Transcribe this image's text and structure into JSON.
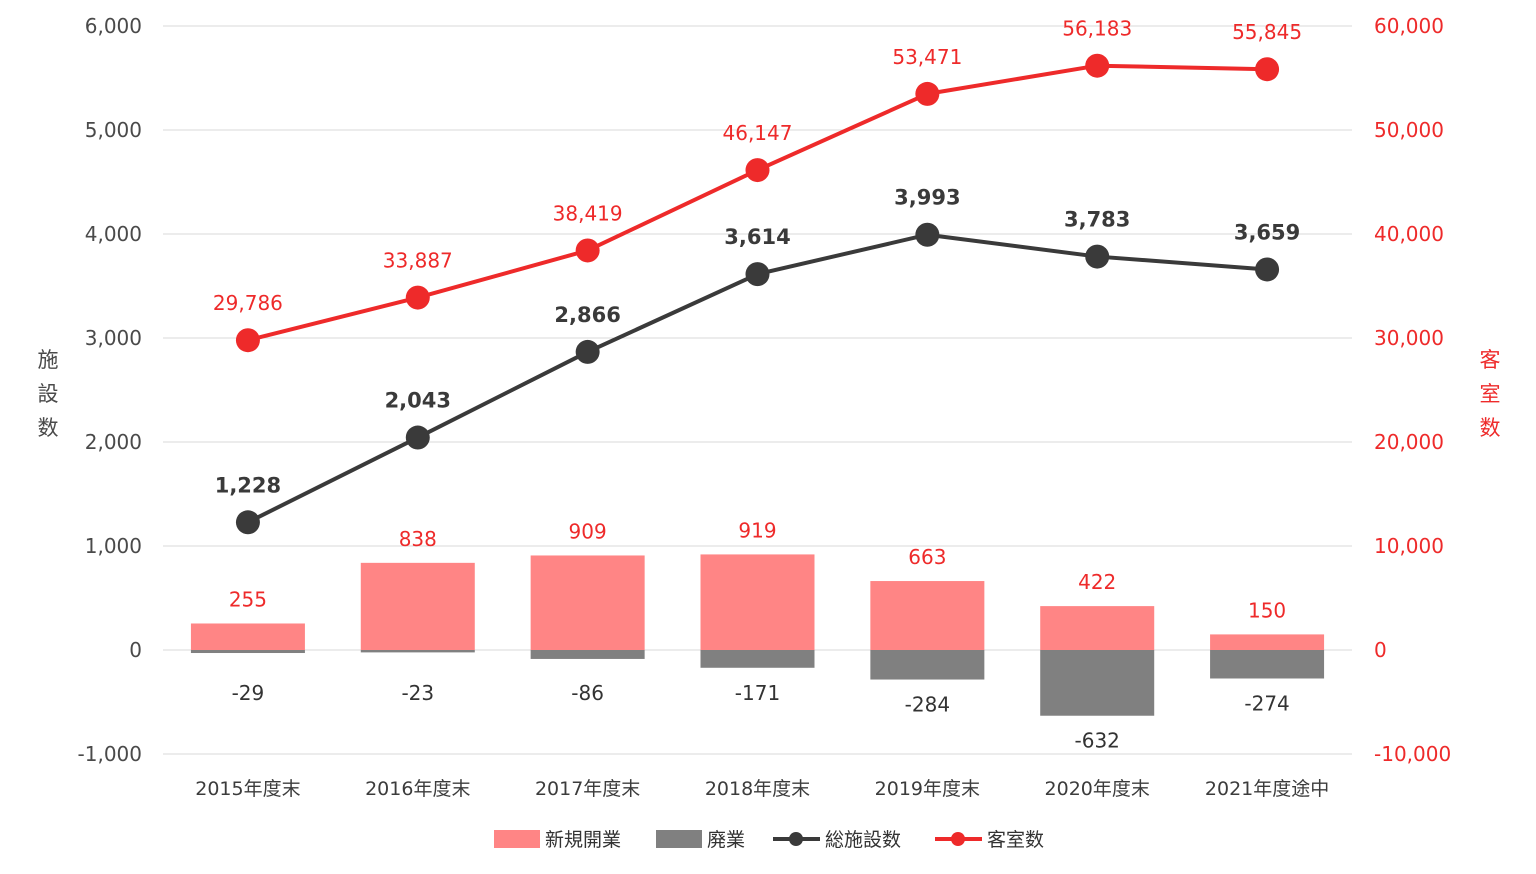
{
  "chart_data": {
    "type": "bar",
    "categories": [
      "2015年度末",
      "2016年度末",
      "2017年度末",
      "2018年度末",
      "2019年度末",
      "2020年度末",
      "2021年度途中"
    ],
    "series": [
      {
        "name": "新規開業",
        "type": "bar",
        "axis": "left",
        "color": "#ff8585",
        "values": [
          255,
          838,
          909,
          919,
          663,
          422,
          150
        ]
      },
      {
        "name": "廃業",
        "type": "bar",
        "axis": "left",
        "color": "#808080",
        "values": [
          -29,
          -23,
          -86,
          -171,
          -284,
          -632,
          -274
        ]
      },
      {
        "name": "総施設数",
        "type": "line",
        "axis": "left",
        "color": "#3a3a3a",
        "values": [
          1228,
          2043,
          2866,
          3614,
          3993,
          3783,
          3659
        ]
      },
      {
        "name": "客室数",
        "type": "line",
        "axis": "right",
        "color": "#ee2a2a",
        "values": [
          29786,
          33887,
          38419,
          46147,
          53471,
          56183,
          55845
        ]
      }
    ],
    "ylabel": "施設数",
    "y2label": "客室数",
    "ylim": [
      -1000,
      6000
    ],
    "y2lim": [
      -10000,
      60000
    ],
    "yticks": [
      "-1,000",
      "0",
      "1,000",
      "2,000",
      "3,000",
      "4,000",
      "5,000",
      "6,000"
    ],
    "y2ticks": [
      "-10,000",
      "0",
      "10,000",
      "20,000",
      "30,000",
      "40,000",
      "50,000",
      "60,000"
    ],
    "grid": true,
    "legend_position": "bottom"
  }
}
